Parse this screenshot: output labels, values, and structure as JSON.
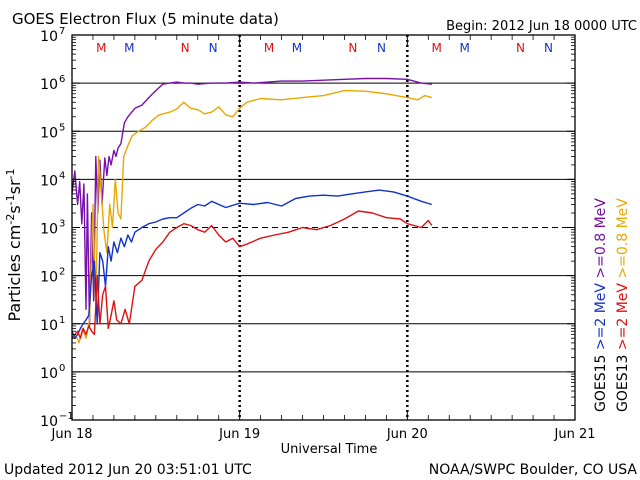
{
  "header": {
    "title": "GOES Electron Flux (5 minute data)",
    "begin": "Begin: 2012 Jun 18 0000 UTC"
  },
  "footer": {
    "updated": "Updated 2012 Jun 20 03:51:01 UTC",
    "credit": "NOAA/SWPC Boulder, CO USA"
  },
  "chart_data": {
    "type": "line",
    "title": "GOES Electron Flux (5 minute data)",
    "xlabel": "Universal Time",
    "ylabel": "Particles cm-2s-1sr-1",
    "yscale": "log",
    "ylim": [
      0.1,
      10000000
    ],
    "xlim": [
      0,
      72
    ],
    "x_unit": "hours since 2012 Jun 18 0000 UTC",
    "x_ticks": [
      {
        "value": 0,
        "label": "Jun 18"
      },
      {
        "value": 24,
        "label": "Jun 19"
      },
      {
        "value": 48,
        "label": "Jun 20"
      },
      {
        "value": 72,
        "label": "Jun 21"
      }
    ],
    "y_ticks": [
      {
        "exp": 7,
        "value": 10000000
      },
      {
        "exp": 6,
        "value": 1000000
      },
      {
        "exp": 5,
        "value": 100000
      },
      {
        "exp": 4,
        "value": 10000
      },
      {
        "exp": 3,
        "value": 1000
      },
      {
        "exp": 2,
        "value": 100
      },
      {
        "exp": 1,
        "value": 10
      },
      {
        "exp": 0,
        "value": 1
      },
      {
        "exp": -1,
        "value": 0.1
      }
    ],
    "threshold": 1000,
    "gridlines": true,
    "markers": [
      {
        "x": 4.2,
        "label": "M",
        "color": "#dd1111"
      },
      {
        "x": 8.2,
        "label": "M",
        "color": "#1133cc"
      },
      {
        "x": 16.2,
        "label": "N",
        "color": "#dd1111"
      },
      {
        "x": 20.2,
        "label": "N",
        "color": "#1133cc"
      },
      {
        "x": 28.2,
        "label": "M",
        "color": "#dd1111"
      },
      {
        "x": 32.2,
        "label": "M",
        "color": "#1133cc"
      },
      {
        "x": 40.2,
        "label": "N",
        "color": "#dd1111"
      },
      {
        "x": 44.3,
        "label": "N",
        "color": "#1133cc"
      },
      {
        "x": 52.2,
        "label": "M",
        "color": "#dd1111"
      },
      {
        "x": 56.2,
        "label": "M",
        "color": "#1133cc"
      },
      {
        "x": 64.2,
        "label": "N",
        "color": "#dd1111"
      },
      {
        "x": 68.2,
        "label": "N",
        "color": "#1133cc"
      }
    ],
    "legend": {
      "placement": "right",
      "columns": [
        {
          "satellite": "GOES15",
          "items": [
            {
              "text": ">=2 MeV",
              "color": "#1133cc"
            },
            {
              "text": ">=0.8 MeV",
              "color": "#7711aa"
            }
          ]
        },
        {
          "satellite": "GOES13",
          "items": [
            {
              "text": ">=2 MeV",
              "color": "#dd1111"
            },
            {
              "text": ">=0.8 MeV",
              "color": "#e8a800"
            }
          ]
        }
      ]
    },
    "series": [
      {
        "name": "GOES15 >=0.8 MeV",
        "color": "#7711aa",
        "x": [
          0,
          0.4,
          0.8,
          1.1,
          1.4,
          1.7,
          2.0,
          2.2,
          2.5,
          2.8,
          3.1,
          3.4,
          3.7,
          4.0,
          4.3,
          4.7,
          5.0,
          5.3,
          5.6,
          6.0,
          6.3,
          6.6,
          7.0,
          7.5,
          8.0,
          9.0,
          10.0,
          11.0,
          12.0,
          13.0,
          14.0,
          15.0,
          16.0,
          17.0,
          18.0,
          20.0,
          22.0,
          24.0,
          26.0,
          28.0,
          30.0,
          33.0,
          36.0,
          39.0,
          42.0,
          45.0,
          48.0,
          50.0,
          51.5
        ],
        "y": [
          5000,
          15000,
          3000,
          9000,
          1200,
          8000,
          20,
          5000,
          9,
          2000,
          30,
          30000,
          2000,
          25000,
          3000,
          28000,
          12000,
          30000,
          20000,
          40000,
          30000,
          45000,
          55000,
          150000,
          200000,
          300000,
          350000,
          500000,
          700000,
          950000,
          1000000,
          1050000,
          1000000,
          1000000,
          950000,
          1000000,
          1000000,
          1050000,
          1000000,
          1050000,
          1100000,
          1100000,
          1150000,
          1200000,
          1250000,
          1250000,
          1200000,
          1000000,
          950000
        ]
      },
      {
        "name": "GOES13 >=0.8 MeV",
        "color": "#e8a800",
        "x": [
          0,
          0.5,
          1.0,
          1.5,
          2.0,
          2.5,
          3.0,
          3.4,
          3.8,
          4.2,
          4.6,
          5.0,
          5.4,
          5.8,
          6.2,
          6.6,
          7.0,
          7.4,
          8.0,
          8.6,
          9.5,
          10.5,
          11.5,
          12.5,
          14.0,
          15.0,
          16.0,
          17.0,
          18.0,
          19.0,
          20.0,
          21.0,
          22.0,
          23.0,
          24.0,
          25.0,
          27.0,
          30.0,
          33.0,
          36.0,
          39.0,
          42.0,
          45.0,
          48.0,
          49.5,
          50.5,
          51.5
        ],
        "y": [
          5,
          6,
          4,
          8,
          5,
          12,
          3000,
          20,
          30000,
          5000,
          800,
          300,
          3000,
          1000,
          10000,
          2000,
          1500,
          30000,
          50000,
          80000,
          100000,
          120000,
          170000,
          220000,
          250000,
          290000,
          400000,
          300000,
          280000,
          230000,
          250000,
          320000,
          220000,
          200000,
          300000,
          400000,
          480000,
          450000,
          500000,
          550000,
          700000,
          680000,
          600000,
          500000,
          450000,
          550000,
          500000
        ]
      },
      {
        "name": "GOES15 >=2 MeV",
        "color": "#1133cc",
        "x": [
          0,
          0.4,
          0.8,
          1.2,
          1.6,
          2.0,
          2.4,
          2.8,
          3.2,
          3.6,
          4.0,
          4.4,
          4.8,
          5.2,
          5.6,
          6.0,
          6.5,
          7.0,
          7.5,
          8.0,
          8.5,
          9.0,
          10.0,
          11.0,
          12.0,
          13.0,
          14.0,
          15.0,
          16.0,
          17.0,
          18.0,
          19.0,
          20.0,
          22.0,
          24.0,
          26.0,
          28.0,
          30.0,
          32.0,
          34.0,
          36.0,
          38.0,
          40.0,
          42.0,
          44.0,
          46.0,
          48.0,
          50.0,
          51.5
        ],
        "y": [
          7,
          5,
          6,
          8,
          10,
          12,
          15,
          100,
          200,
          10,
          300,
          200,
          60,
          400,
          200,
          500,
          300,
          600,
          400,
          700,
          500,
          800,
          1000,
          1200,
          1300,
          1500,
          1600,
          1600,
          2000,
          2500,
          3000,
          2800,
          3500,
          2600,
          3200,
          3000,
          3300,
          2800,
          4000,
          4500,
          4700,
          4500,
          5000,
          5500,
          6000,
          5500,
          4500,
          3500,
          3000
        ]
      },
      {
        "name": "GOES13 >=2 MeV",
        "color": "#dd1111",
        "x": [
          0,
          0.4,
          0.8,
          1.2,
          1.6,
          2.0,
          2.4,
          2.8,
          3.2,
          3.6,
          4.0,
          4.4,
          4.8,
          5.2,
          5.6,
          6.0,
          6.4,
          7.0,
          7.6,
          8.2,
          9.0,
          10.0,
          11.0,
          12.0,
          13.0,
          14.0,
          15.0,
          16.0,
          17.0,
          18.0,
          19.0,
          20.0,
          21.0,
          22.0,
          23.0,
          24.0,
          25.0,
          27.0,
          29.0,
          31.0,
          33.0,
          35.0,
          37.0,
          39.0,
          41.0,
          43.0,
          45.0,
          47.0,
          48.0,
          49.0,
          50.0,
          51.0,
          51.5
        ],
        "y": [
          5,
          6,
          7,
          5,
          8,
          6,
          9,
          7,
          6,
          100,
          10,
          40,
          60,
          8,
          15,
          30,
          12,
          10,
          20,
          10,
          60,
          80,
          200,
          350,
          500,
          800,
          1000,
          1200,
          1100,
          900,
          800,
          1100,
          700,
          500,
          600,
          400,
          450,
          600,
          700,
          800,
          1000,
          900,
          1100,
          1500,
          2200,
          2000,
          1600,
          1500,
          1200,
          1100,
          1000,
          1400,
          1100
        ]
      }
    ]
  }
}
